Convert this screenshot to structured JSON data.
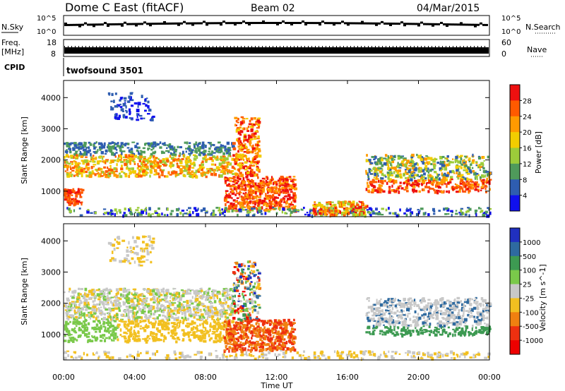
{
  "header": {
    "station": "Dome C East (fitACF)",
    "beam": "Beam 02",
    "date": "04/Mar/2015"
  },
  "top_panels": {
    "nsky_label": "N.Sky",
    "nsky_ticks": [
      "10^5",
      "10^0"
    ],
    "nsearch_label": "N.Search",
    "nsearch_ticks": [
      "10^5",
      "10^0"
    ],
    "freq_label_1": "Freq.",
    "freq_label_2": "[MHz]",
    "freq_ticks": [
      "18",
      "8"
    ],
    "nave_label": "Nave",
    "nave_ticks": [
      "60",
      "0"
    ],
    "cpid_label": "CPID",
    "cpid_value": "twofsound 3501"
  },
  "chart_data": [
    {
      "type": "heatmap",
      "name": "power-panel",
      "ylabel": "Slant Range [km]",
      "xlabel": "",
      "x_tick_labels": [
        "00:00",
        "04:00",
        "08:00",
        "12:00",
        "16:00",
        "20:00",
        "00:00"
      ],
      "x_range_hours": [
        0,
        24
      ],
      "y_ticks": [
        1000,
        2000,
        3000,
        4000
      ],
      "ylim": [
        180,
        4550
      ],
      "colorbar": {
        "label": "Power [dB]",
        "tick_labels": [
          "28",
          "24",
          "20",
          "16",
          "12",
          "8",
          "4"
        ],
        "colors": [
          "#ee1010",
          "#ff5a00",
          "#ff9a00",
          "#f2cd00",
          "#9ccc3a",
          "#4f9a5b",
          "#2e5db0",
          "#1010ee"
        ]
      }
    },
    {
      "type": "heatmap",
      "name": "velocity-panel",
      "ylabel": "Slant Range [km]",
      "xlabel": "Time UT",
      "x_tick_labels": [
        "00:00",
        "04:00",
        "08:00",
        "12:00",
        "16:00",
        "20:00",
        "00:00"
      ],
      "x_range_hours": [
        0,
        24
      ],
      "y_ticks": [
        1000,
        2000,
        3000,
        4000
      ],
      "ylim": [
        180,
        4550
      ],
      "colorbar": {
        "label": "Velocity [m s^-1]",
        "tick_labels": [
          "1000",
          "500",
          "100",
          "25",
          "-25",
          "-100",
          "-500",
          "-1000"
        ],
        "colors": [
          "#2030c0",
          "#2e6aa0",
          "#3d9a52",
          "#7ac94a",
          "#c8c8c8",
          "#f2c020",
          "#f08010",
          "#ee3010",
          "#ee0000"
        ]
      }
    }
  ]
}
